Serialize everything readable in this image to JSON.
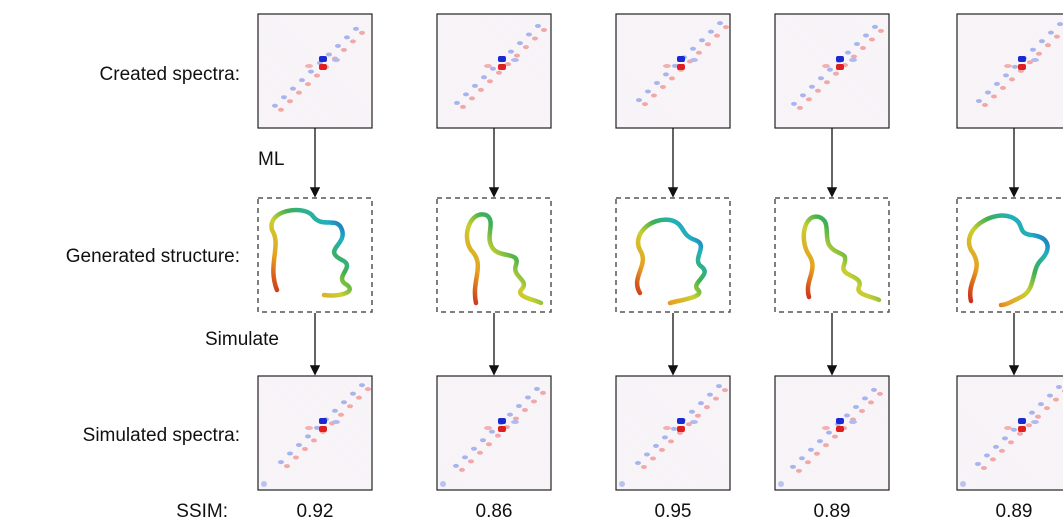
{
  "row_labels": {
    "created": "Created spectra:",
    "generated": "Generated structure:",
    "simulated": "Simulated spectra:",
    "ssim": "SSIM:"
  },
  "arrow_labels": {
    "ml": "ML",
    "simulate": "Simulate"
  },
  "ssim_values": [
    "0.92",
    "0.86",
    "0.95",
    "0.89",
    "0.89"
  ]
}
